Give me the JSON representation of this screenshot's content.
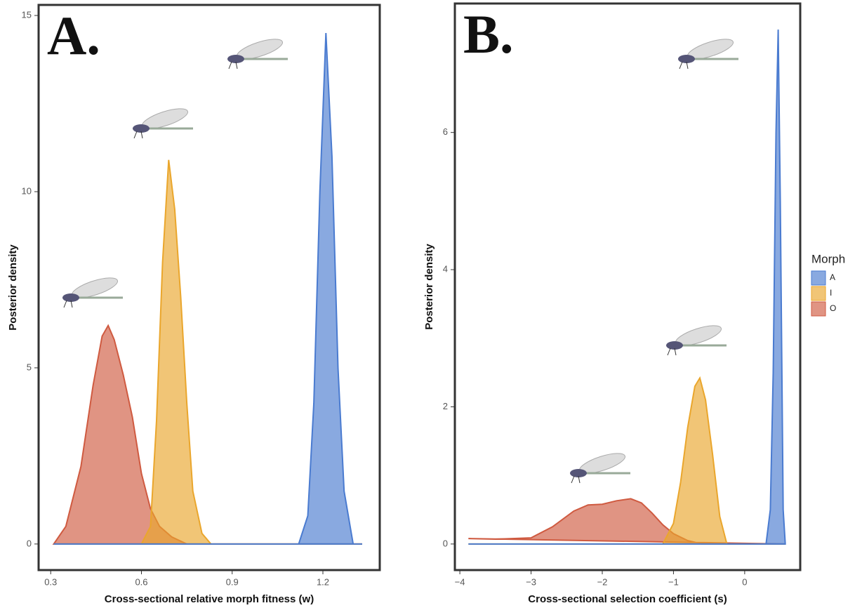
{
  "chart_data": [
    {
      "type": "density",
      "title": "A.",
      "xlabel": "Cross-sectional relative morph fitness (w)",
      "ylabel": "Posterior density",
      "xlim": [
        0.26,
        1.388
      ],
      "ylim": [
        -0.74,
        15.3
      ],
      "xticks": [
        0.3,
        0.6,
        0.9,
        1.2
      ],
      "yticks": [
        0,
        5,
        10,
        15
      ],
      "series": [
        {
          "name": "O",
          "color": "#cf5a40",
          "x": [
            0.31,
            0.35,
            0.4,
            0.44,
            0.47,
            0.49,
            0.51,
            0.54,
            0.57,
            0.6,
            0.63,
            0.66,
            0.7,
            0.75,
            1.33
          ],
          "values": [
            0,
            0.5,
            2.2,
            4.5,
            5.9,
            6.2,
            5.8,
            4.8,
            3.6,
            2.0,
            1.0,
            0.5,
            0.2,
            0,
            0
          ]
        },
        {
          "name": "I",
          "color": "#eaa62c",
          "x": [
            0.31,
            0.6,
            0.63,
            0.65,
            0.67,
            0.69,
            0.71,
            0.73,
            0.75,
            0.77,
            0.8,
            0.83,
            1.33
          ],
          "values": [
            0,
            0,
            0.5,
            3.5,
            8,
            10.9,
            9.5,
            7,
            4,
            1.5,
            0.3,
            0,
            0
          ]
        },
        {
          "name": "A",
          "color": "#4a7bd0",
          "x": [
            0.31,
            1.12,
            1.15,
            1.17,
            1.19,
            1.21,
            1.23,
            1.25,
            1.27,
            1.3,
            1.33
          ],
          "values": [
            0,
            0,
            0.8,
            4,
            10,
            14.5,
            11,
            5,
            1.5,
            0,
            0
          ]
        }
      ]
    },
    {
      "type": "density",
      "title": "B.",
      "xlabel": "Cross-sectional selection coefficient (s)",
      "ylabel": "Posterior density",
      "xlim": [
        -4.07,
        0.78
      ],
      "ylim": [
        -0.38,
        7.88
      ],
      "xticks": [
        {
          "value": -4,
          "label": "−4"
        },
        {
          "value": -3,
          "label": "−3"
        },
        {
          "value": -2,
          "label": "−2"
        },
        {
          "value": -1,
          "label": "−1"
        },
        0
      ],
      "yticks": [
        0,
        2,
        4,
        6
      ],
      "legend_title": "Morph",
      "series": [
        {
          "name": "O",
          "color": "#cf5a40",
          "x": [
            -3.88,
            -3.5,
            -3.0,
            -2.7,
            -2.4,
            -2.2,
            -2.0,
            -1.8,
            -1.6,
            -1.45,
            -1.3,
            -1.15,
            -1.0,
            -0.8,
            -0.6,
            0.57
          ],
          "values": [
            0.08,
            0.07,
            0.09,
            0.25,
            0.48,
            0.57,
            0.58,
            0.63,
            0.66,
            0.6,
            0.45,
            0.28,
            0.15,
            0.05,
            0,
            0
          ]
        },
        {
          "name": "I",
          "color": "#eaa62c",
          "x": [
            -3.88,
            -1.15,
            -1.0,
            -0.9,
            -0.8,
            -0.7,
            -0.63,
            -0.55,
            -0.45,
            -0.35,
            -0.25,
            0.57
          ],
          "values": [
            0,
            0,
            0.3,
            0.9,
            1.7,
            2.3,
            2.42,
            2.1,
            1.3,
            0.4,
            0,
            0
          ]
        },
        {
          "name": "A",
          "color": "#4a7bd0",
          "x": [
            -3.88,
            0.3,
            0.36,
            0.4,
            0.44,
            0.47,
            0.5,
            0.54,
            0.57
          ],
          "values": [
            0,
            0,
            0.5,
            2.5,
            6,
            7.5,
            5,
            0.5,
            0
          ]
        }
      ]
    }
  ]
}
